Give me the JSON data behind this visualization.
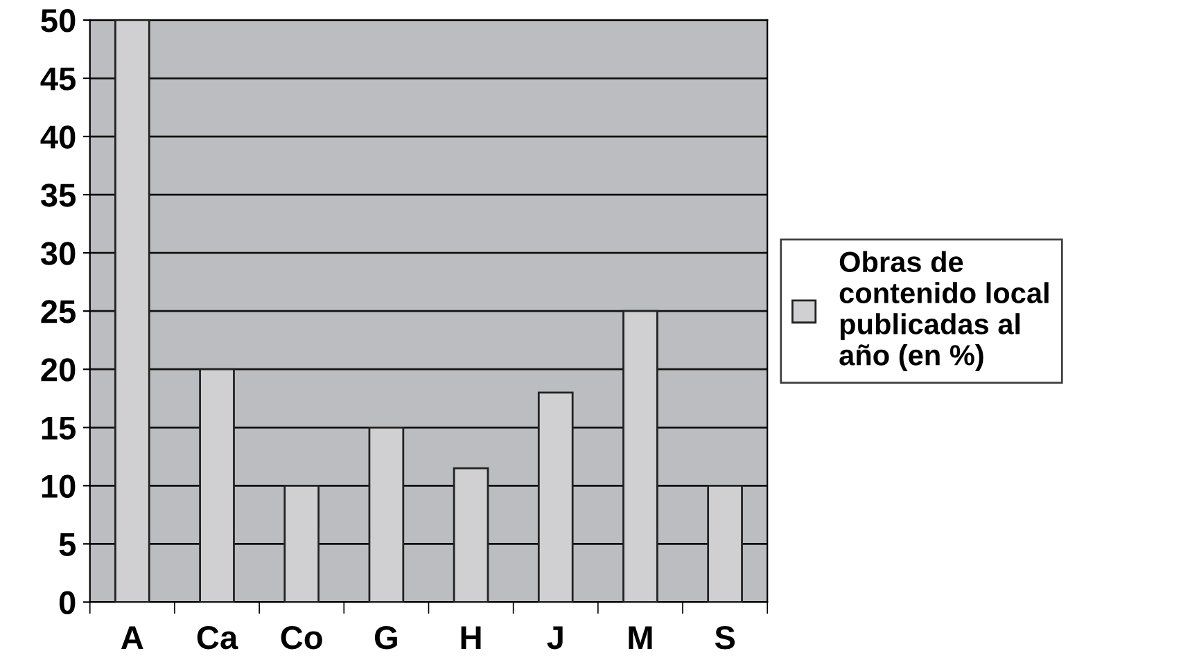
{
  "chart_data": {
    "type": "bar",
    "categories": [
      "A",
      "Ca",
      "Co",
      "G",
      "H",
      "J",
      "M",
      "S"
    ],
    "series": [
      {
        "name": "Obras de\ncontenido local\npublicadas al\naño (en %)",
        "color": "#d0d0d3",
        "values": [
          50,
          20,
          10,
          15,
          11.5,
          18,
          25,
          10
        ]
      }
    ],
    "ylim": [
      0,
      50
    ],
    "yticks": [
      0,
      5,
      10,
      15,
      20,
      25,
      30,
      35,
      40,
      45,
      50
    ],
    "grid": "y",
    "legend": "right"
  }
}
